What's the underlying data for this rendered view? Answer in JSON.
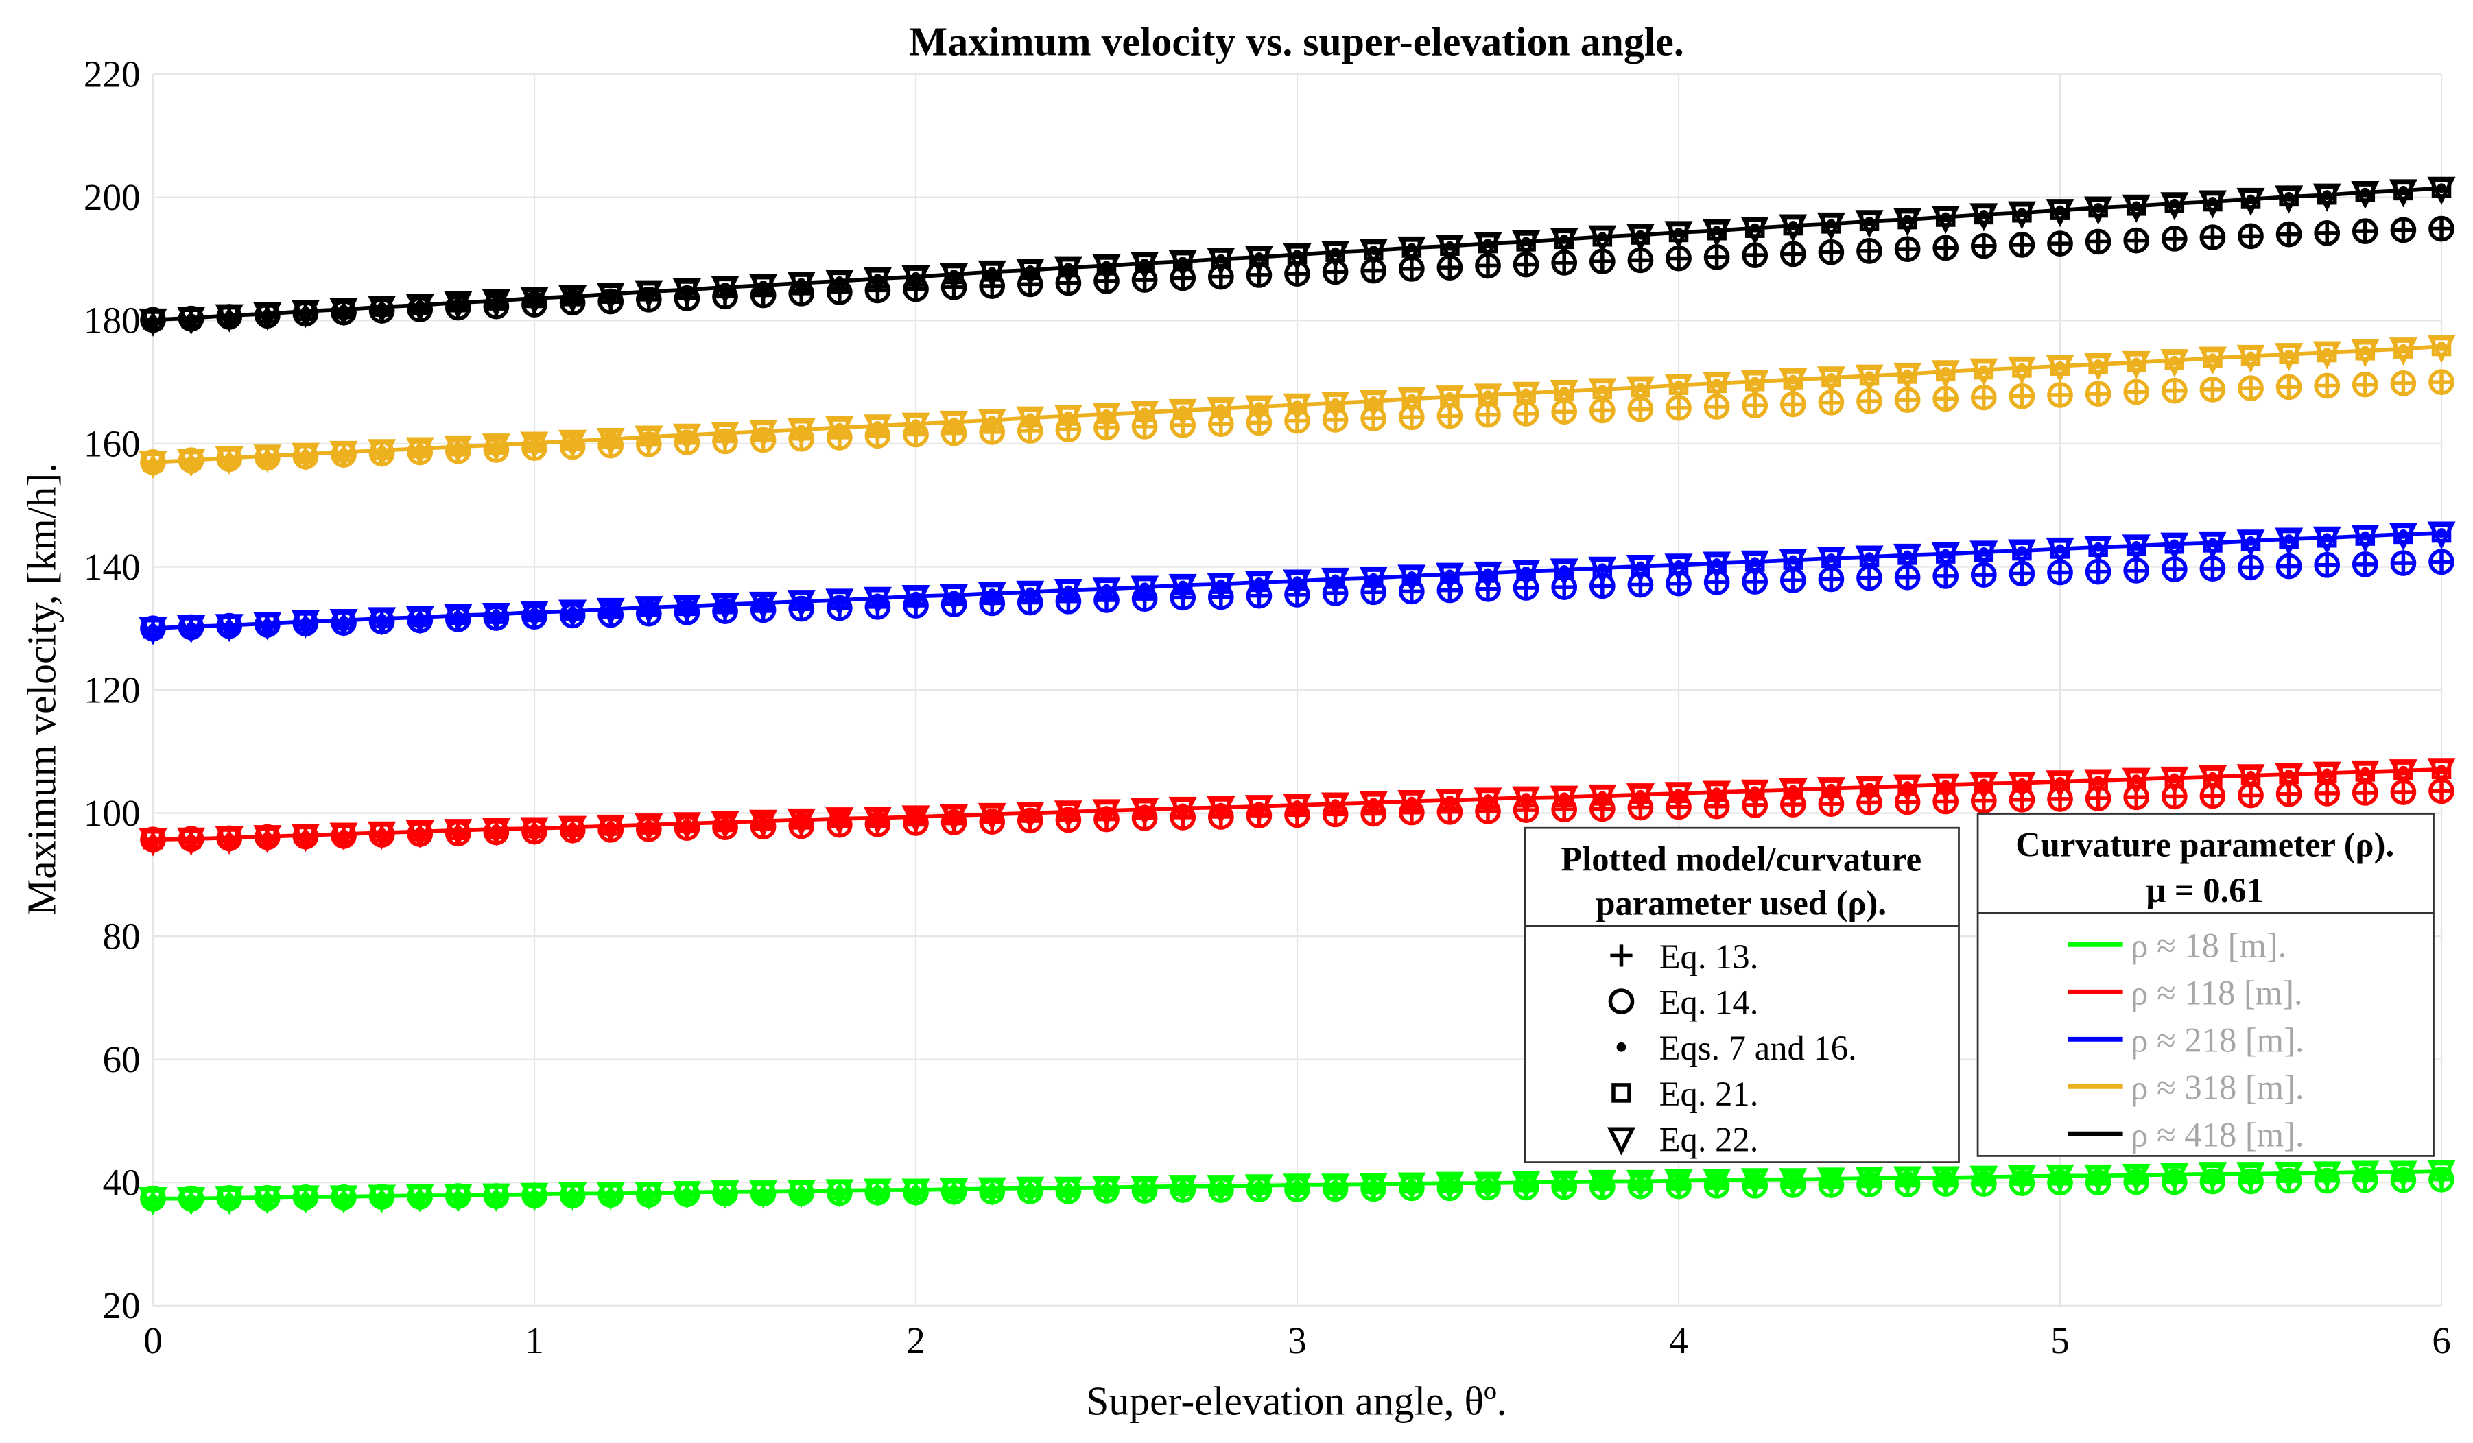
{
  "chart_data": {
    "type": "line+scatter",
    "title": "Maximum velocity vs. super-elevation angle.",
    "xlabel": "Super-elevation angle, θº.",
    "ylabel": "Maximum velocity, [km/h].",
    "xlim": [
      0,
      6
    ],
    "ylim": [
      20,
      220
    ],
    "x_ticks": [
      "0",
      "1",
      "2",
      "3",
      "4",
      "5",
      "6"
    ],
    "y_ticks": [
      "20",
      "40",
      "60",
      "80",
      "100",
      "120",
      "140",
      "160",
      "180",
      "200",
      "220"
    ],
    "grid": true,
    "x": [
      0,
      0.1,
      0.2,
      0.3,
      0.4,
      0.5,
      0.6,
      0.7,
      0.8,
      0.9,
      1,
      1.1,
      1.2,
      1.3,
      1.4,
      1.5,
      1.6,
      1.7,
      1.8,
      1.9,
      2,
      2.1,
      2.2,
      2.3,
      2.4,
      2.5,
      2.6,
      2.7,
      2.8,
      2.9,
      3,
      3.1,
      3.2,
      3.3,
      3.4,
      3.5,
      3.6,
      3.7,
      3.8,
      3.9,
      4,
      4.1,
      4.2,
      4.3,
      4.4,
      4.5,
      4.6,
      4.7,
      4.8,
      4.9,
      5,
      5.1,
      5.2,
      5.3,
      5.4,
      5.5,
      5.6,
      5.7,
      5.8,
      5.9,
      6
    ],
    "marker_legend": {
      "title_line1": "Plotted model/curvature",
      "title_line2": "parameter used (ρ).",
      "placement": "bottom-right",
      "items": [
        {
          "marker": "plus",
          "label": "Eq. 13."
        },
        {
          "marker": "circle",
          "label": "Eq. 14."
        },
        {
          "marker": "dot",
          "label": "Eqs. 7 and 16."
        },
        {
          "marker": "square",
          "label": "Eq. 21."
        },
        {
          "marker": "triangle-down",
          "label": "Eq. 22."
        }
      ]
    },
    "series_legend": {
      "title_line1": "Curvature parameter (ρ).",
      "title_line2": "μ = 0.61",
      "placement": "bottom-right",
      "label_color": "#a6a6a6"
    },
    "series": [
      {
        "name": "ρ ≈ 18 [m].",
        "color": "#00ff00",
        "eq13_eq14": [
          37.4,
          37.4,
          37.5,
          37.5,
          37.6,
          37.6,
          37.7,
          37.7,
          37.8,
          37.8,
          37.9,
          37.9,
          38.0,
          38.0,
          38.1,
          38.2,
          38.2,
          38.3,
          38.3,
          38.4,
          38.4,
          38.5,
          38.5,
          38.6,
          38.6,
          38.7,
          38.7,
          38.8,
          38.8,
          38.9,
          38.9,
          39.0,
          39.0,
          39.1,
          39.1,
          39.2,
          39.2,
          39.3,
          39.3,
          39.4,
          39.4,
          39.5,
          39.5,
          39.6,
          39.6,
          39.7,
          39.7,
          39.8,
          39.8,
          39.9,
          40.0,
          40.0,
          40.1,
          40.1,
          40.2,
          40.2,
          40.3,
          40.3,
          40.4,
          40.4,
          40.5
        ],
        "eqs7_16_eq21_eq22": [
          37.4,
          37.4,
          37.5,
          37.6,
          37.7,
          37.7,
          37.8,
          37.9,
          37.9,
          38.0,
          38.1,
          38.2,
          38.2,
          38.3,
          38.4,
          38.5,
          38.5,
          38.6,
          38.7,
          38.8,
          38.8,
          38.9,
          39.0,
          39.1,
          39.1,
          39.2,
          39.3,
          39.4,
          39.4,
          39.5,
          39.6,
          39.6,
          39.7,
          39.8,
          39.9,
          39.9,
          40.0,
          40.1,
          40.2,
          40.2,
          40.3,
          40.4,
          40.5,
          40.5,
          40.6,
          40.7,
          40.8,
          40.8,
          40.9,
          41.0,
          41.1,
          41.1,
          41.2,
          41.3,
          41.4,
          41.4,
          41.5,
          41.6,
          41.7,
          41.7,
          41.8
        ]
      },
      {
        "name": "ρ ≈ 118 [m].",
        "color": "#ff0000",
        "eq13_eq14": [
          95.7,
          95.8,
          95.9,
          96.1,
          96.2,
          96.3,
          96.5,
          96.6,
          96.7,
          96.9,
          97.0,
          97.2,
          97.3,
          97.4,
          97.6,
          97.7,
          97.8,
          97.9,
          98.1,
          98.2,
          98.4,
          98.5,
          98.6,
          98.8,
          98.9,
          99.0,
          99.2,
          99.3,
          99.4,
          99.6,
          99.7,
          99.8,
          99.9,
          100.1,
          100.2,
          100.3,
          100.5,
          100.6,
          100.7,
          100.9,
          101.0,
          101.1,
          101.3,
          101.4,
          101.5,
          101.7,
          101.8,
          101.9,
          102.0,
          102.2,
          102.3,
          102.4,
          102.6,
          102.7,
          102.8,
          102.9,
          103.1,
          103.2,
          103.3,
          103.4,
          103.6
        ],
        "eqs7_16_eq21_eq22": [
          95.7,
          95.8,
          96.0,
          96.2,
          96.4,
          96.6,
          96.8,
          97.0,
          97.2,
          97.4,
          97.5,
          97.7,
          97.9,
          98.1,
          98.3,
          98.5,
          98.7,
          98.9,
          99.1,
          99.2,
          99.4,
          99.6,
          99.8,
          100.0,
          100.2,
          100.4,
          100.6,
          100.8,
          100.9,
          101.1,
          101.3,
          101.5,
          101.7,
          101.9,
          102.1,
          102.3,
          102.5,
          102.6,
          102.8,
          103.0,
          103.2,
          103.4,
          103.6,
          103.8,
          104.0,
          104.2,
          104.4,
          104.6,
          104.8,
          104.9,
          105.1,
          105.3,
          105.5,
          105.7,
          105.9,
          106.1,
          106.3,
          106.5,
          106.7,
          106.9,
          107.1
        ]
      },
      {
        "name": "ρ ≈ 218 [m].",
        "color": "#0000ff",
        "eq13_eq14": [
          130.0,
          130.2,
          130.4,
          130.6,
          130.8,
          130.9,
          131.1,
          131.3,
          131.5,
          131.7,
          131.9,
          132.1,
          132.2,
          132.4,
          132.6,
          132.8,
          133.0,
          133.2,
          133.3,
          133.5,
          133.7,
          133.9,
          134.1,
          134.2,
          134.4,
          134.6,
          134.8,
          135.0,
          135.1,
          135.3,
          135.5,
          135.7,
          135.9,
          136.0,
          136.2,
          136.4,
          136.6,
          136.7,
          136.9,
          137.1,
          137.3,
          137.5,
          137.6,
          137.8,
          138.0,
          138.2,
          138.3,
          138.5,
          138.7,
          138.9,
          139.1,
          139.2,
          139.4,
          139.6,
          139.7,
          139.9,
          140.1,
          140.3,
          140.4,
          140.6,
          140.8
        ],
        "eqs7_16_eq21_eq22": [
          130.0,
          130.3,
          130.5,
          130.8,
          131.1,
          131.3,
          131.6,
          131.8,
          132.1,
          132.3,
          132.6,
          132.8,
          133.1,
          133.4,
          133.6,
          133.9,
          134.1,
          134.4,
          134.6,
          134.9,
          135.2,
          135.4,
          135.7,
          135.9,
          136.2,
          136.4,
          136.7,
          137.0,
          137.2,
          137.5,
          137.7,
          138.0,
          138.2,
          138.5,
          138.8,
          139.0,
          139.3,
          139.5,
          139.8,
          140.1,
          140.3,
          140.6,
          140.8,
          141.1,
          141.4,
          141.6,
          141.9,
          142.1,
          142.4,
          142.6,
          142.9,
          143.2,
          143.4,
          143.7,
          143.9,
          144.2,
          144.5,
          144.7,
          145.0,
          145.3,
          145.5
        ]
      },
      {
        "name": "ρ ≈ 318 [m].",
        "color": "#edb120",
        "eq13_eq14": [
          157.0,
          157.3,
          157.5,
          157.7,
          157.9,
          158.2,
          158.4,
          158.6,
          158.8,
          159.0,
          159.3,
          159.5,
          159.7,
          159.9,
          160.2,
          160.4,
          160.6,
          160.8,
          161.0,
          161.3,
          161.5,
          161.7,
          161.9,
          162.1,
          162.3,
          162.6,
          162.8,
          163.0,
          163.2,
          163.4,
          163.7,
          163.9,
          164.1,
          164.3,
          164.5,
          164.7,
          164.9,
          165.2,
          165.4,
          165.6,
          165.8,
          166.0,
          166.2,
          166.4,
          166.7,
          166.9,
          167.1,
          167.3,
          167.5,
          167.7,
          167.9,
          168.1,
          168.4,
          168.6,
          168.8,
          169.0,
          169.2,
          169.4,
          169.6,
          169.8,
          170.0
        ],
        "eqs7_16_eq21_eq22": [
          157.0,
          157.3,
          157.7,
          158.0,
          158.3,
          158.6,
          158.9,
          159.2,
          159.5,
          159.8,
          160.1,
          160.4,
          160.7,
          161.1,
          161.4,
          161.7,
          162.0,
          162.3,
          162.6,
          162.9,
          163.2,
          163.5,
          163.8,
          164.2,
          164.5,
          164.8,
          165.1,
          165.4,
          165.7,
          166.0,
          166.3,
          166.6,
          166.9,
          167.3,
          167.6,
          167.9,
          168.2,
          168.5,
          168.8,
          169.1,
          169.5,
          169.8,
          170.1,
          170.4,
          170.7,
          171.0,
          171.3,
          171.7,
          172.0,
          172.3,
          172.6,
          172.9,
          173.2,
          173.5,
          173.9,
          174.2,
          174.5,
          174.8,
          175.1,
          175.4,
          175.8
        ]
      },
      {
        "name": "ρ ≈ 418 [m].",
        "color": "#000000",
        "eq13_eq14": [
          180.1,
          180.3,
          180.6,
          180.8,
          181.1,
          181.3,
          181.6,
          181.8,
          182.1,
          182.3,
          182.6,
          182.9,
          183.1,
          183.4,
          183.6,
          183.9,
          184.1,
          184.4,
          184.6,
          184.9,
          185.1,
          185.4,
          185.6,
          185.9,
          186.1,
          186.4,
          186.6,
          186.9,
          187.1,
          187.4,
          187.6,
          187.9,
          188.1,
          188.4,
          188.6,
          188.9,
          189.1,
          189.4,
          189.6,
          189.8,
          190.1,
          190.3,
          190.6,
          190.8,
          191.1,
          191.3,
          191.6,
          191.8,
          192.1,
          192.3,
          192.5,
          192.8,
          193.0,
          193.3,
          193.5,
          193.7,
          194.0,
          194.2,
          194.5,
          194.7,
          194.9
        ],
        "eqs7_16_eq21_eq22": [
          180.1,
          180.4,
          180.8,
          181.1,
          181.5,
          181.8,
          182.2,
          182.5,
          182.9,
          183.2,
          183.6,
          183.9,
          184.3,
          184.7,
          185.0,
          185.4,
          185.7,
          186.1,
          186.4,
          186.8,
          187.1,
          187.5,
          187.9,
          188.2,
          188.6,
          188.9,
          189.3,
          189.6,
          190.0,
          190.3,
          190.7,
          191.1,
          191.4,
          191.8,
          192.1,
          192.5,
          192.8,
          193.2,
          193.6,
          193.9,
          194.3,
          194.6,
          195.0,
          195.4,
          195.7,
          196.1,
          196.4,
          196.8,
          197.2,
          197.5,
          197.9,
          198.3,
          198.6,
          199.0,
          199.3,
          199.7,
          200.1,
          200.4,
          200.8,
          201.1,
          201.5
        ]
      }
    ]
  }
}
